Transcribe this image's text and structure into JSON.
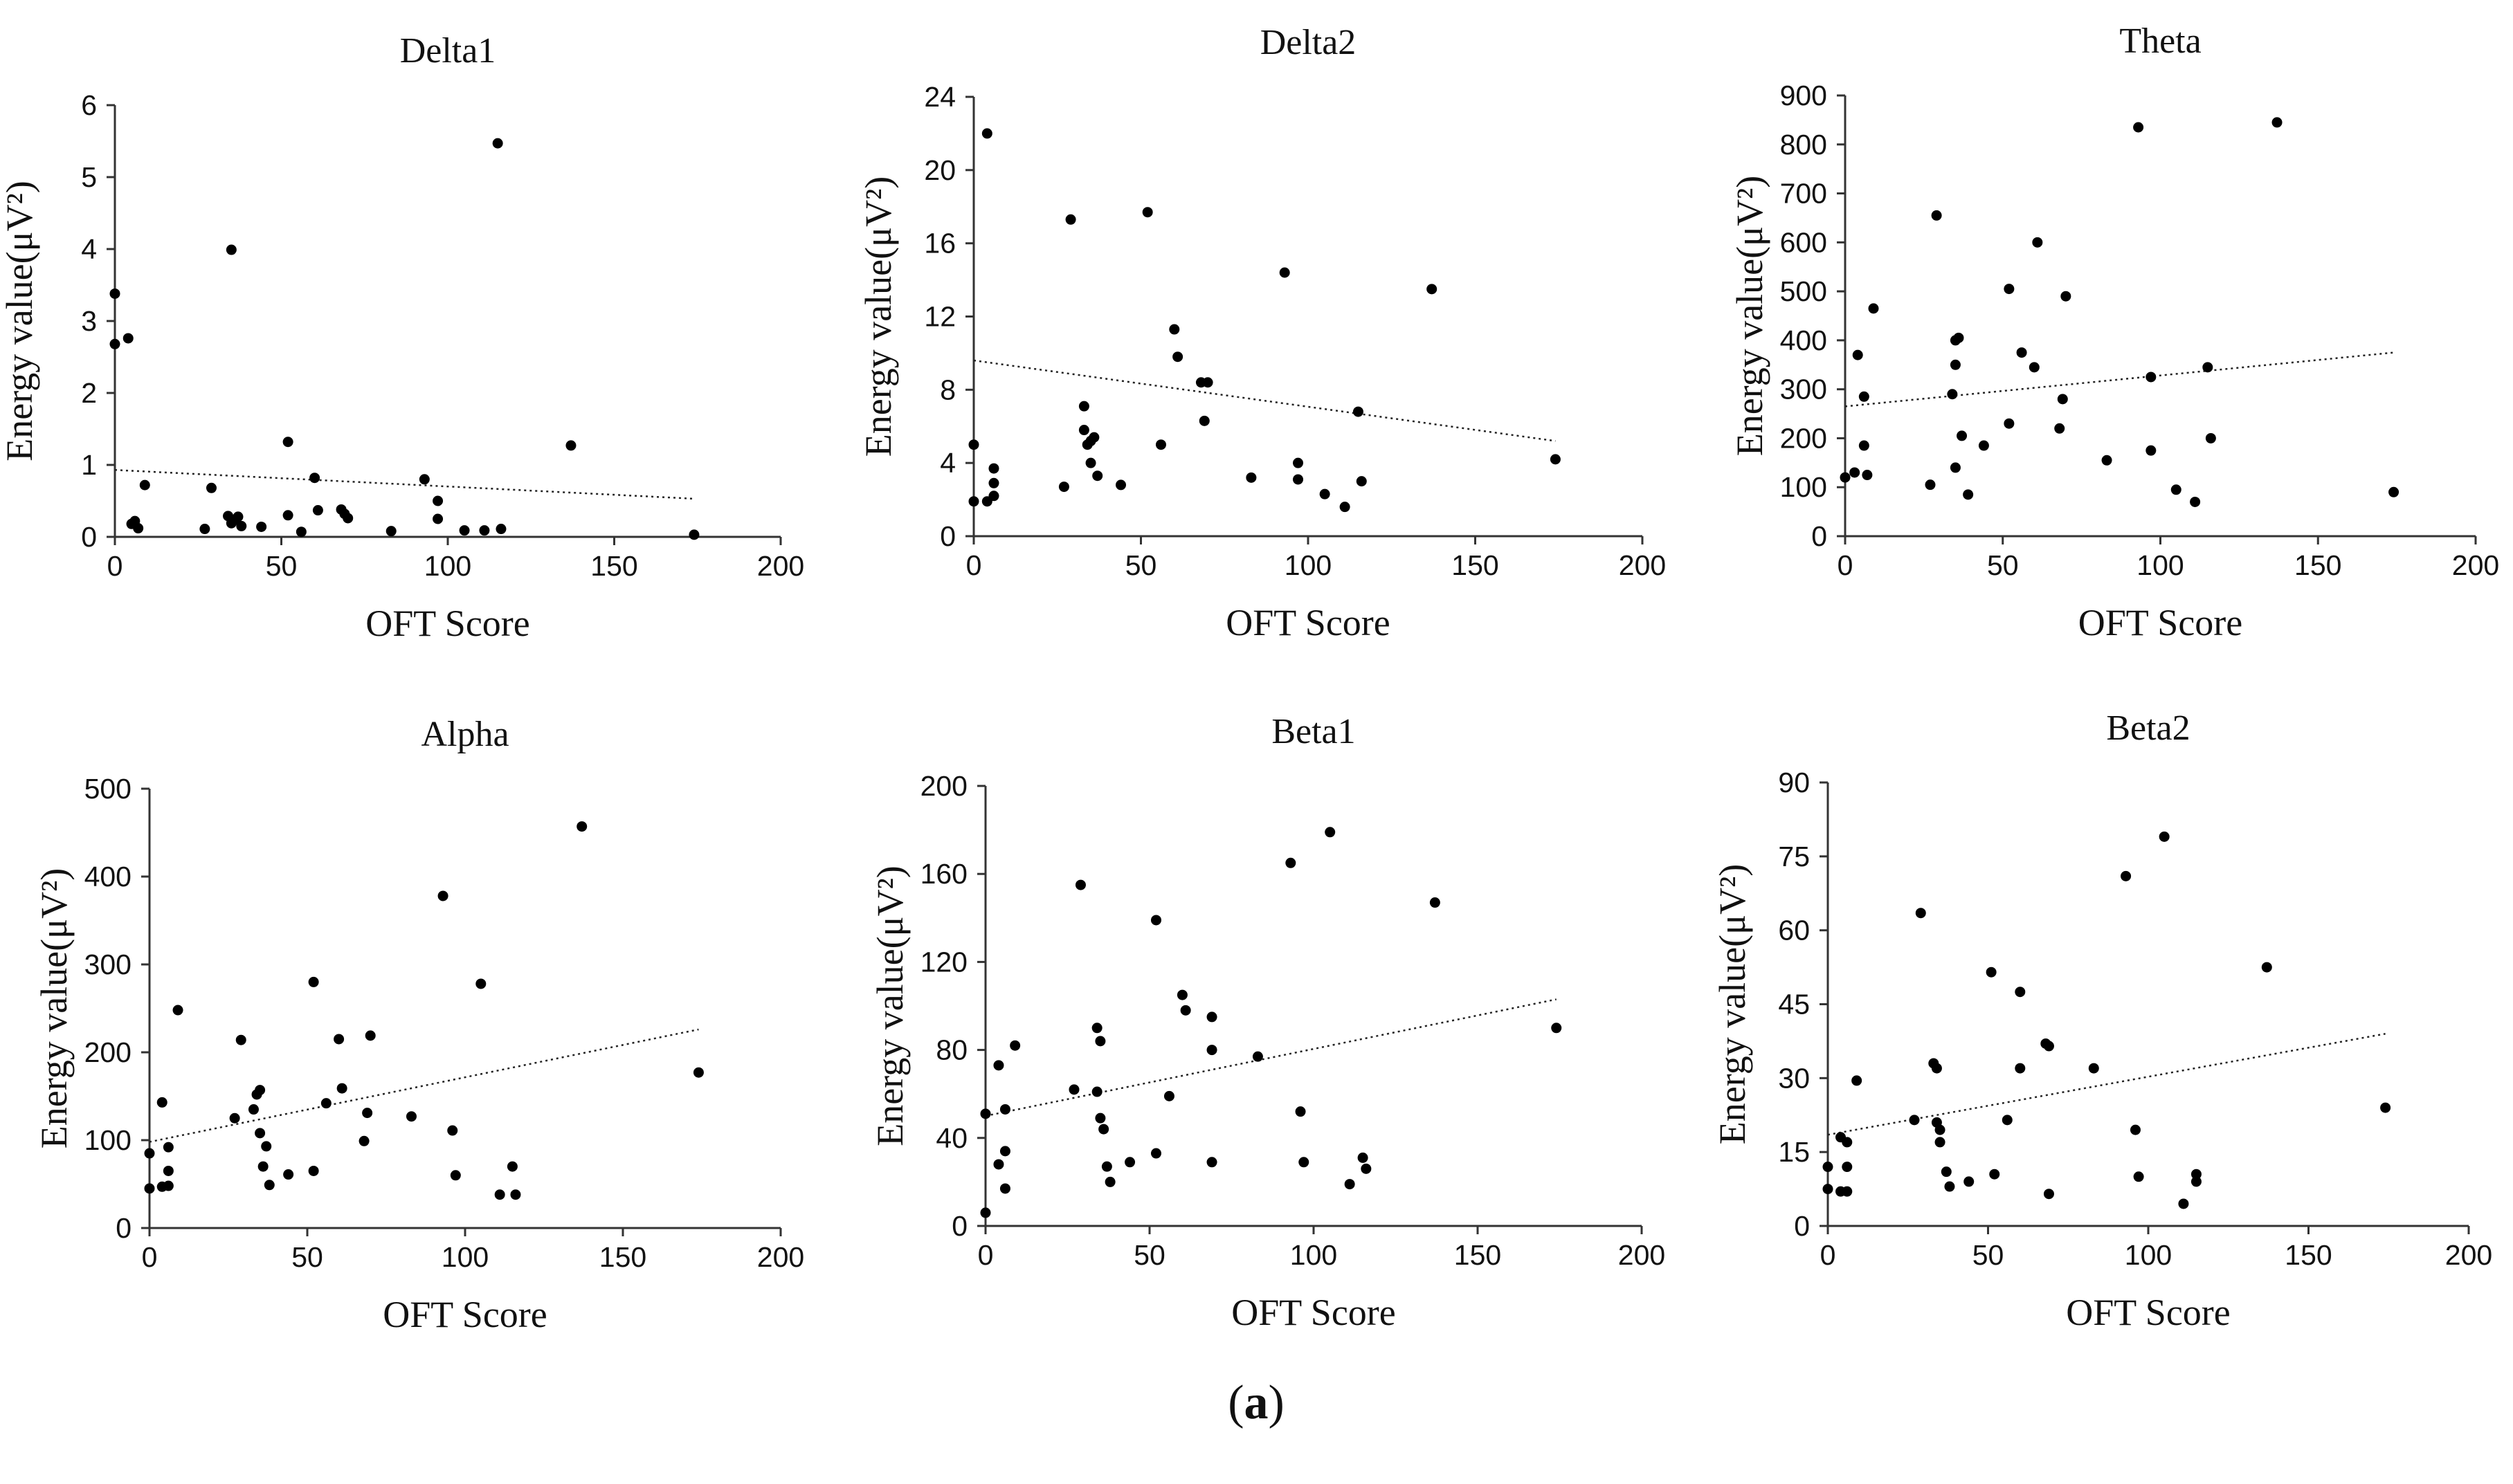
{
  "caption": {
    "open": "(",
    "letter": "a",
    "close": ")"
  },
  "chart_data": [
    {
      "type": "scatter",
      "title": "Delta1",
      "xlabel": "OFT Score",
      "ylabel": "Energy value(μV²)",
      "xlim": [
        0,
        200
      ],
      "ylim": [
        0,
        6
      ],
      "xticks": [
        0,
        50,
        100,
        150,
        200
      ],
      "yticks": [
        0,
        1,
        2,
        3,
        4,
        5,
        6
      ],
      "trendline": [
        [
          0,
          0.93
        ],
        [
          174,
          0.53
        ]
      ],
      "points": [
        [
          0,
          3.38
        ],
        [
          0,
          2.68
        ],
        [
          4,
          2.76
        ],
        [
          5,
          0.18
        ],
        [
          6,
          0.22
        ],
        [
          7,
          0.12
        ],
        [
          9,
          0.72
        ],
        [
          27,
          0.11
        ],
        [
          29,
          0.68
        ],
        [
          34,
          0.29
        ],
        [
          35,
          3.99
        ],
        [
          35,
          0.19
        ],
        [
          36,
          0.24
        ],
        [
          37,
          0.28
        ],
        [
          38,
          0.15
        ],
        [
          44,
          0.14
        ],
        [
          52,
          1.32
        ],
        [
          52,
          0.3
        ],
        [
          56,
          0.07
        ],
        [
          60,
          0.82
        ],
        [
          61,
          0.37
        ],
        [
          68,
          0.38
        ],
        [
          69,
          0.32
        ],
        [
          70,
          0.26
        ],
        [
          83,
          0.08
        ],
        [
          93,
          0.8
        ],
        [
          97,
          0.5
        ],
        [
          97,
          0.25
        ],
        [
          105,
          0.09
        ],
        [
          111,
          0.09
        ],
        [
          115,
          5.47
        ],
        [
          116,
          0.11
        ],
        [
          137,
          1.27
        ],
        [
          174,
          0.03
        ]
      ]
    },
    {
      "type": "scatter",
      "title": "Delta2",
      "xlabel": "OFT Score",
      "ylabel": "Energy value(μV²)",
      "xlim": [
        0,
        200
      ],
      "ylim": [
        0,
        24
      ],
      "xticks": [
        0,
        50,
        100,
        150,
        200
      ],
      "yticks": [
        0,
        4,
        8,
        12,
        16,
        20,
        24
      ],
      "trendline": [
        [
          0,
          9.6
        ],
        [
          174,
          5.2
        ]
      ],
      "points": [
        [
          0,
          5.0
        ],
        [
          0,
          1.9
        ],
        [
          4,
          22.0
        ],
        [
          4,
          1.9
        ],
        [
          6,
          3.7
        ],
        [
          6,
          2.9
        ],
        [
          6,
          2.2
        ],
        [
          27,
          2.7
        ],
        [
          29,
          17.3
        ],
        [
          33,
          7.1
        ],
        [
          33,
          5.8
        ],
        [
          34,
          5.0
        ],
        [
          35,
          5.2
        ],
        [
          35,
          4.0
        ],
        [
          36,
          5.4
        ],
        [
          37,
          3.3
        ],
        [
          44,
          2.8
        ],
        [
          52,
          17.7
        ],
        [
          56,
          5.0
        ],
        [
          60,
          11.3
        ],
        [
          61,
          9.8
        ],
        [
          68,
          8.4
        ],
        [
          69,
          6.3
        ],
        [
          70,
          8.4
        ],
        [
          83,
          3.2
        ],
        [
          93,
          14.4
        ],
        [
          97,
          4.0
        ],
        [
          97,
          3.1
        ],
        [
          105,
          2.3
        ],
        [
          111,
          1.6
        ],
        [
          115,
          6.8
        ],
        [
          116,
          3.0
        ],
        [
          137,
          13.5
        ],
        [
          174,
          4.2
        ]
      ]
    },
    {
      "type": "scatter",
      "title": "Theta",
      "xlabel": "OFT Score",
      "ylabel": "Energy value(μV²)",
      "xlim": [
        0,
        200
      ],
      "ylim": [
        0,
        900
      ],
      "xticks": [
        0,
        50,
        100,
        150,
        200
      ],
      "yticks": [
        0,
        100,
        200,
        300,
        400,
        500,
        600,
        700,
        800,
        900
      ],
      "trendline": [
        [
          0,
          265
        ],
        [
          174,
          375
        ]
      ],
      "points": [
        [
          0,
          120
        ],
        [
          3,
          130
        ],
        [
          4,
          370
        ],
        [
          6,
          285
        ],
        [
          6,
          185
        ],
        [
          7,
          125
        ],
        [
          9,
          465
        ],
        [
          27,
          105
        ],
        [
          29,
          655
        ],
        [
          34,
          290
        ],
        [
          35,
          400
        ],
        [
          35,
          350
        ],
        [
          35,
          140
        ],
        [
          36,
          405
        ],
        [
          37,
          205
        ],
        [
          39,
          85
        ],
        [
          44,
          185
        ],
        [
          52,
          505
        ],
        [
          52,
          230
        ],
        [
          56,
          375
        ],
        [
          60,
          345
        ],
        [
          61,
          600
        ],
        [
          68,
          220
        ],
        [
          69,
          280
        ],
        [
          70,
          490
        ],
        [
          83,
          155
        ],
        [
          93,
          835
        ],
        [
          97,
          325
        ],
        [
          97,
          175
        ],
        [
          105,
          95
        ],
        [
          111,
          70
        ],
        [
          115,
          345
        ],
        [
          116,
          200
        ],
        [
          137,
          845
        ],
        [
          174,
          90
        ]
      ]
    },
    {
      "type": "scatter",
      "title": "Alpha",
      "xlabel": "OFT Score",
      "ylabel": "Energy value(μV²)",
      "xlim": [
        0,
        200
      ],
      "ylim": [
        0,
        500
      ],
      "xticks": [
        0,
        50,
        100,
        150,
        200
      ],
      "yticks": [
        0,
        100,
        200,
        300,
        400,
        500
      ],
      "trendline": [
        [
          0,
          98
        ],
        [
          174,
          226
        ]
      ],
      "points": [
        [
          0,
          85
        ],
        [
          0,
          45
        ],
        [
          4,
          143
        ],
        [
          4,
          47
        ],
        [
          6,
          92
        ],
        [
          6,
          65
        ],
        [
          6,
          48
        ],
        [
          9,
          248
        ],
        [
          27,
          125
        ],
        [
          29,
          214
        ],
        [
          33,
          135
        ],
        [
          34,
          152
        ],
        [
          35,
          157
        ],
        [
          35,
          108
        ],
        [
          36,
          70
        ],
        [
          37,
          93
        ],
        [
          38,
          49
        ],
        [
          44,
          61
        ],
        [
          52,
          280
        ],
        [
          52,
          65
        ],
        [
          56,
          142
        ],
        [
          60,
          215
        ],
        [
          61,
          159
        ],
        [
          68,
          99
        ],
        [
          69,
          131
        ],
        [
          70,
          219
        ],
        [
          83,
          127
        ],
        [
          93,
          378
        ],
        [
          96,
          111
        ],
        [
          97,
          60
        ],
        [
          105,
          278
        ],
        [
          111,
          38
        ],
        [
          115,
          70
        ],
        [
          116,
          38
        ],
        [
          137,
          457
        ],
        [
          174,
          177
        ]
      ]
    },
    {
      "type": "scatter",
      "title": "Beta1",
      "xlabel": "OFT Score",
      "ylabel": "Energy value(μV²)",
      "xlim": [
        0,
        200
      ],
      "ylim": [
        0,
        200
      ],
      "xticks": [
        0,
        50,
        100,
        150,
        200
      ],
      "yticks": [
        0,
        40,
        80,
        120,
        160,
        200
      ],
      "trendline": [
        [
          0,
          50
        ],
        [
          174,
          103
        ]
      ],
      "points": [
        [
          0,
          6
        ],
        [
          0,
          51
        ],
        [
          4,
          73
        ],
        [
          4,
          28
        ],
        [
          6,
          53
        ],
        [
          6,
          34
        ],
        [
          6,
          17
        ],
        [
          9,
          82
        ],
        [
          27,
          62
        ],
        [
          29,
          155
        ],
        [
          34,
          61
        ],
        [
          34,
          90
        ],
        [
          35,
          84
        ],
        [
          35,
          49
        ],
        [
          36,
          44
        ],
        [
          37,
          27
        ],
        [
          38,
          20
        ],
        [
          44,
          29
        ],
        [
          52,
          139
        ],
        [
          52,
          33
        ],
        [
          56,
          59
        ],
        [
          60,
          105
        ],
        [
          61,
          98
        ],
        [
          69,
          95
        ],
        [
          69,
          80
        ],
        [
          69,
          29
        ],
        [
          83,
          77
        ],
        [
          93,
          165
        ],
        [
          96,
          52
        ],
        [
          97,
          29
        ],
        [
          105,
          179
        ],
        [
          111,
          19
        ],
        [
          115,
          31
        ],
        [
          116,
          26
        ],
        [
          137,
          147
        ],
        [
          174,
          90
        ]
      ]
    },
    {
      "type": "scatter",
      "title": "Beta2",
      "xlabel": "OFT Score",
      "ylabel": "Energy value(μV²)",
      "xlim": [
        0,
        200
      ],
      "ylim": [
        0,
        90
      ],
      "xticks": [
        0,
        50,
        100,
        150,
        200
      ],
      "yticks": [
        0,
        15,
        30,
        45,
        60,
        75,
        90
      ],
      "trendline": [
        [
          0,
          18.5
        ],
        [
          174,
          39
        ]
      ],
      "points": [
        [
          0,
          12
        ],
        [
          0,
          7.5
        ],
        [
          4,
          18
        ],
        [
          4,
          7
        ],
        [
          6,
          17
        ],
        [
          6,
          12
        ],
        [
          6,
          7
        ],
        [
          9,
          29.5
        ],
        [
          27,
          21.5
        ],
        [
          29,
          63.5
        ],
        [
          33,
          33
        ],
        [
          34,
          21
        ],
        [
          34,
          32
        ],
        [
          35,
          19.5
        ],
        [
          35,
          17
        ],
        [
          37,
          11
        ],
        [
          38,
          8
        ],
        [
          44,
          9
        ],
        [
          51,
          51.5
        ],
        [
          52,
          10.5
        ],
        [
          56,
          21.5
        ],
        [
          60,
          47.5
        ],
        [
          60,
          32
        ],
        [
          68,
          37
        ],
        [
          69,
          36.5
        ],
        [
          69,
          6.5
        ],
        [
          83,
          32
        ],
        [
          93,
          71
        ],
        [
          96,
          19.5
        ],
        [
          97,
          10
        ],
        [
          105,
          79
        ],
        [
          111,
          4.5
        ],
        [
          115,
          10.5
        ],
        [
          115,
          9
        ],
        [
          137,
          52.5
        ],
        [
          174,
          24
        ]
      ]
    }
  ]
}
